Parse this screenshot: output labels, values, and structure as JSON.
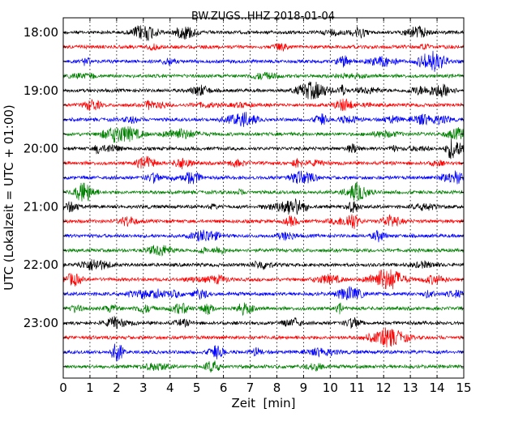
{
  "chart_data": {
    "type": "line",
    "title": "BW.ZUGS..HHZ 2018-01-04",
    "xlabel": "Zeit  [min]",
    "ylabel": "UTC (Lokalzeit = UTC + 01:00)",
    "xlim": [
      0,
      15
    ],
    "x_ticks": [
      0,
      1,
      2,
      3,
      4,
      5,
      6,
      7,
      8,
      9,
      10,
      11,
      12,
      13,
      14,
      15
    ],
    "y_tick_labels": [
      "18:00",
      "19:00",
      "20:00",
      "21:00",
      "22:00",
      "23:00"
    ],
    "trace_start_times": [
      "18:00",
      "18:15",
      "18:30",
      "18:45",
      "19:00",
      "19:15",
      "19:30",
      "19:45",
      "20:00",
      "20:15",
      "20:30",
      "20:45",
      "21:00",
      "21:15",
      "21:30",
      "21:45",
      "22:00",
      "22:15",
      "22:30",
      "22:45",
      "23:00",
      "23:15",
      "23:30",
      "23:45"
    ],
    "trace_colors": [
      "#000000",
      "#ff0000",
      "#0000ff",
      "#008000"
    ],
    "grid": "vertical dotted lines at each minute"
  }
}
